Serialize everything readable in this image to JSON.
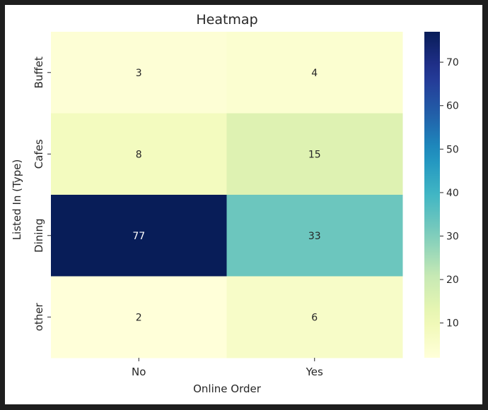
{
  "chart_data": {
    "type": "heatmap",
    "title": "Heatmap",
    "xlabel": "Online Order",
    "ylabel": "Listed In (Type)",
    "x_categories": [
      "No",
      "Yes"
    ],
    "y_categories": [
      "Buffet",
      "Cafes",
      "Dining",
      "other"
    ],
    "values": [
      [
        3,
        4
      ],
      [
        8,
        15
      ],
      [
        77,
        33
      ],
      [
        2,
        6
      ]
    ],
    "colormap": "YlGnBu",
    "colorbar": {
      "range": [
        2,
        77
      ],
      "ticks": [
        "10",
        "20",
        "30",
        "40",
        "50",
        "60",
        "70"
      ]
    },
    "annot_text_colors": {
      "on_light": "#262626",
      "on_dark": "#ffffff"
    }
  }
}
